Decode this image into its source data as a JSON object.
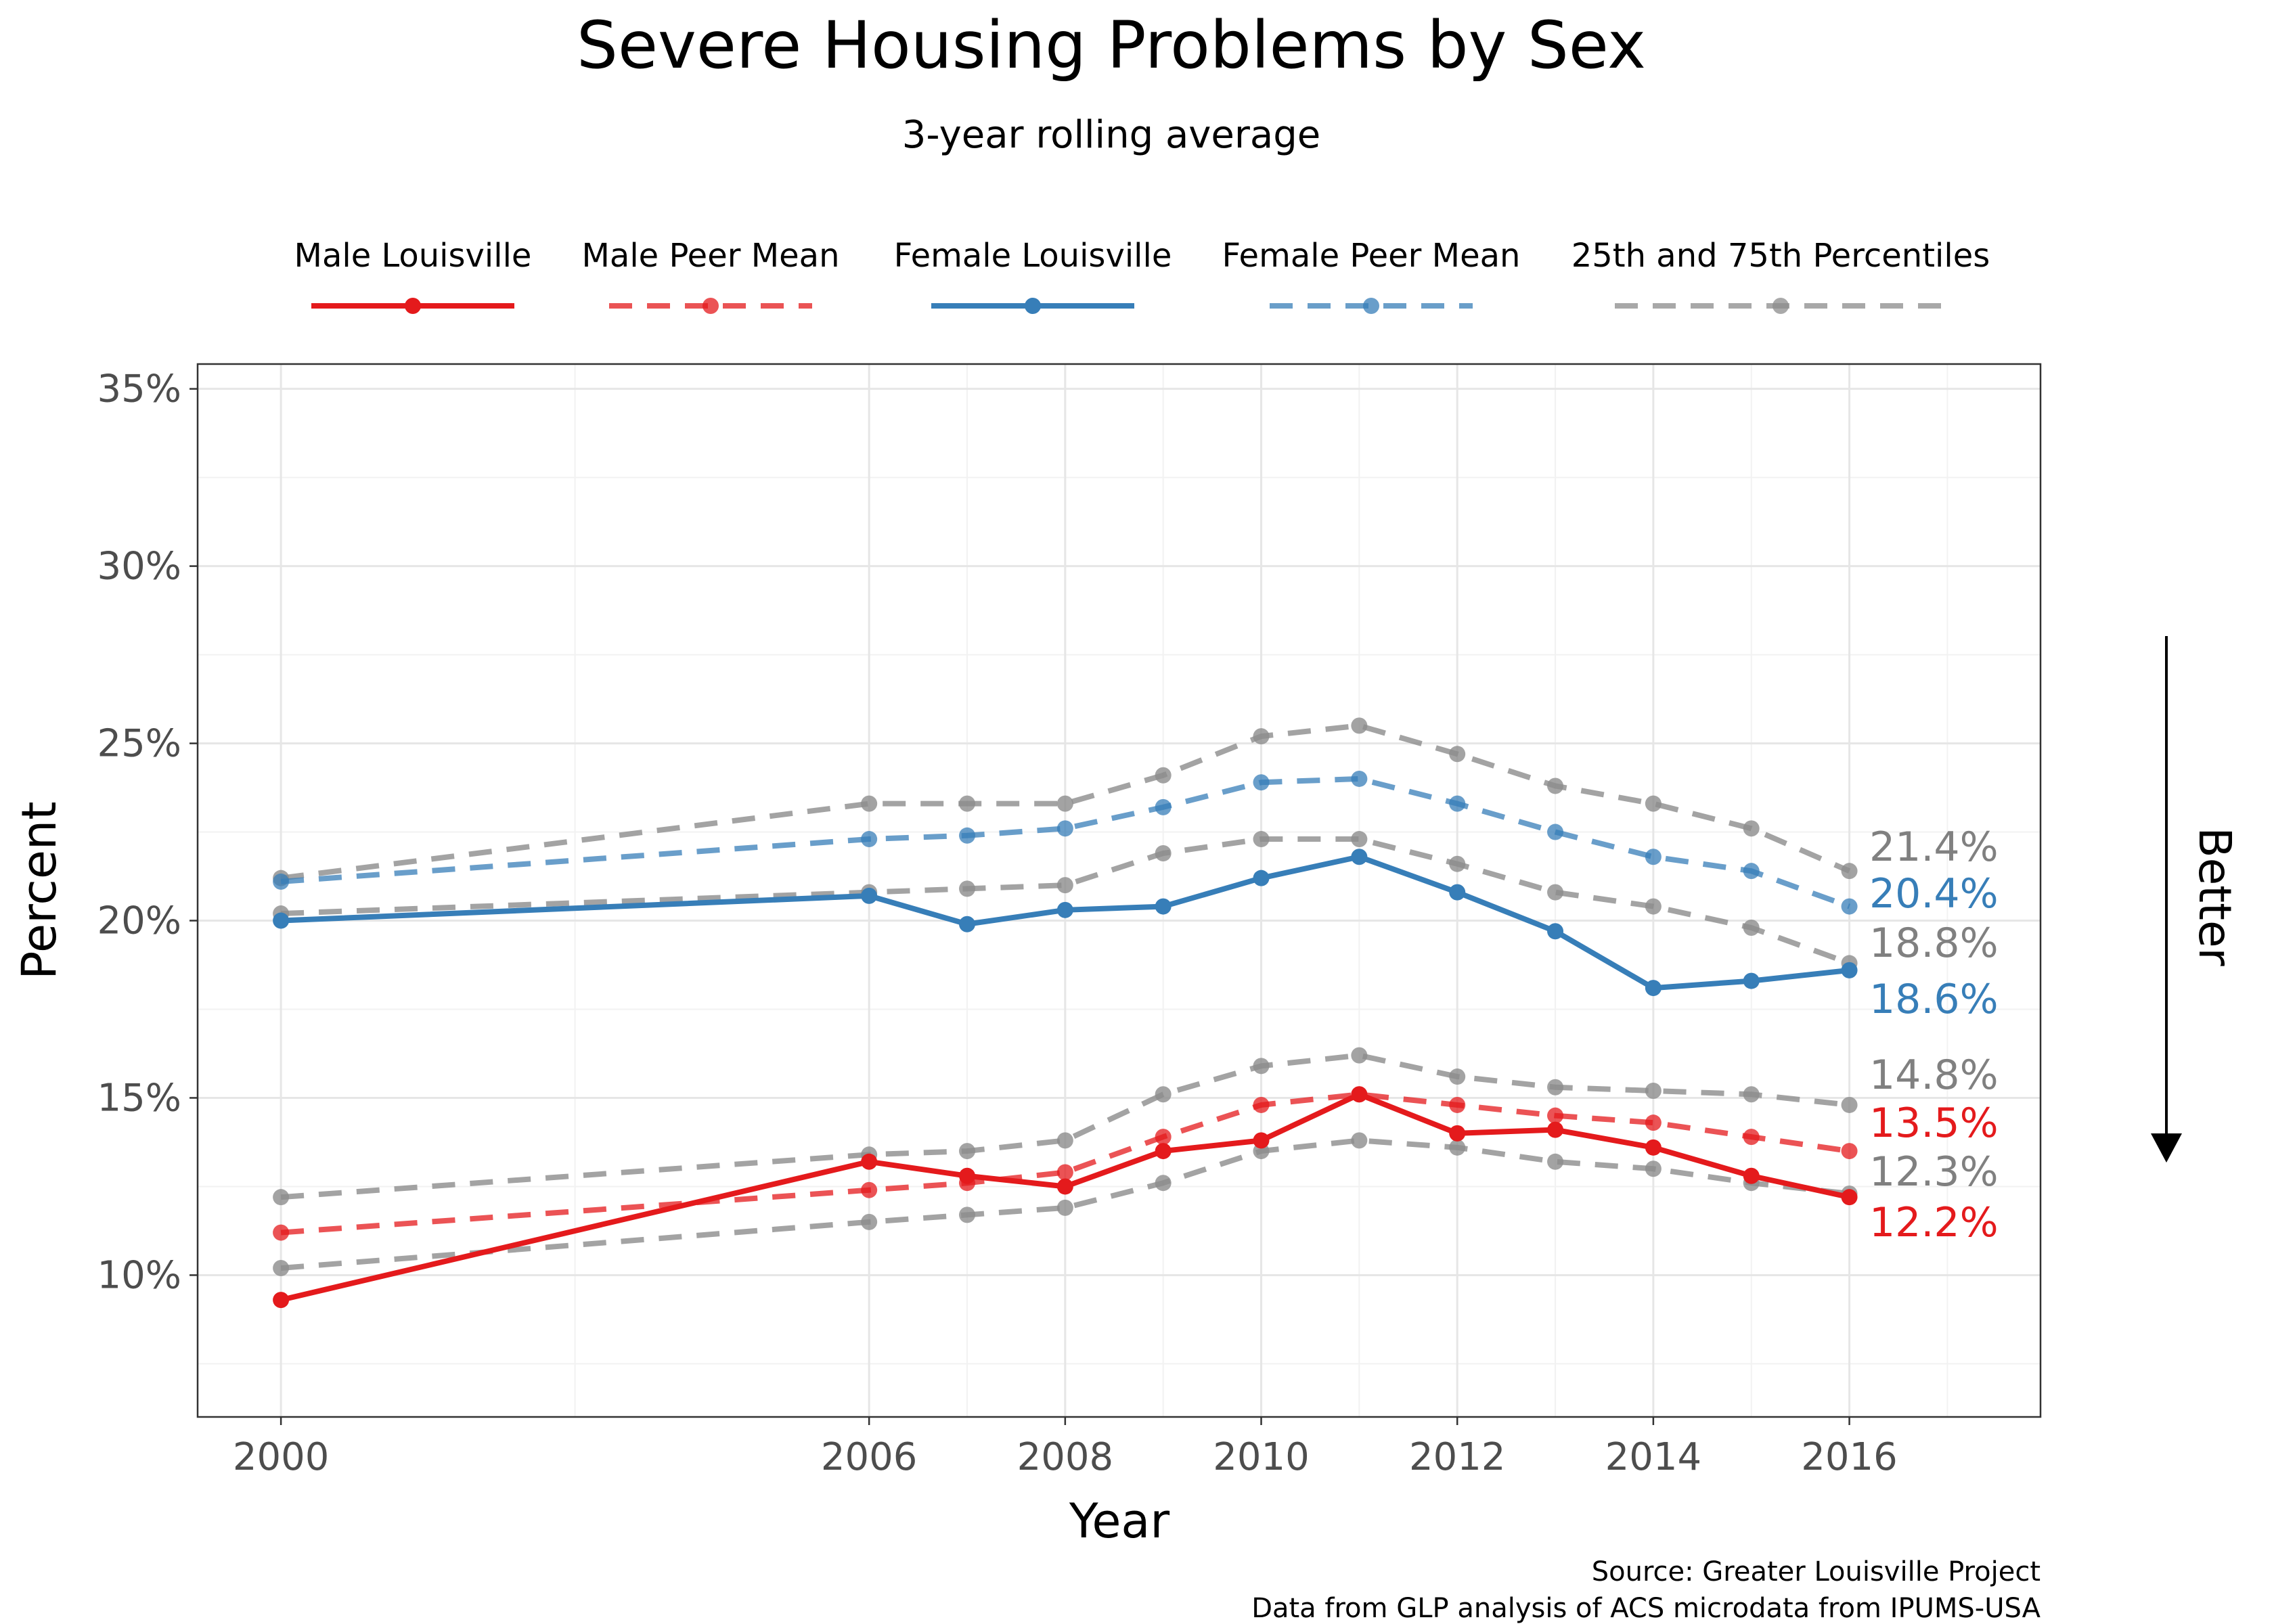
{
  "chart_data": {
    "type": "line",
    "title": "Severe Housing Problems by Sex",
    "subtitle": "3-year rolling average",
    "xlabel": "Year",
    "ylabel": "Percent",
    "side_label": "Better",
    "x_ticks": [
      2000,
      2006,
      2008,
      2010,
      2012,
      2014,
      2016
    ],
    "y_ticks": [
      10,
      15,
      20,
      25,
      30,
      35
    ],
    "y_tick_labels": [
      "10%",
      "15%",
      "20%",
      "25%",
      "30%",
      "35%"
    ],
    "xlim": [
      1999.15,
      2017.95
    ],
    "ylim": [
      6.0,
      35.7
    ],
    "grid": true,
    "legend_position": "top",
    "legend": [
      {
        "label": "Male Louisville",
        "color": "#e41a1c",
        "style": "solid"
      },
      {
        "label": "Male Peer Mean",
        "color": "#e41a1c",
        "style": "dashed"
      },
      {
        "label": "Female Louisville",
        "color": "#377eb8",
        "style": "solid"
      },
      {
        "label": "Female Peer Mean",
        "color": "#377eb8",
        "style": "dashed"
      },
      {
        "label": "25th and 75th Percentiles",
        "color": "#8c8c8c",
        "style": "dashed"
      }
    ],
    "x": [
      2000,
      2006,
      2007,
      2008,
      2009,
      2010,
      2011,
      2012,
      2013,
      2014,
      2015,
      2016
    ],
    "series": [
      {
        "key": "female_p75",
        "color": "#8c8c8c",
        "style": "dashed",
        "opacity": 0.8,
        "values": [
          21.2,
          23.3,
          23.3,
          23.3,
          24.1,
          25.2,
          25.5,
          24.7,
          23.8,
          23.3,
          22.6,
          21.4
        ]
      },
      {
        "key": "female_p25",
        "color": "#8c8c8c",
        "style": "dashed",
        "opacity": 0.8,
        "values": [
          20.2,
          20.8,
          20.9,
          21.0,
          21.9,
          22.3,
          22.3,
          21.6,
          20.8,
          20.4,
          19.8,
          18.8
        ]
      },
      {
        "key": "female_peer_mean",
        "color": "#377eb8",
        "style": "dashed",
        "opacity": 0.75,
        "values": [
          21.1,
          22.3,
          22.4,
          22.6,
          23.2,
          23.9,
          24.0,
          23.3,
          22.5,
          21.8,
          21.4,
          20.4
        ]
      },
      {
        "key": "male_p75",
        "color": "#8c8c8c",
        "style": "dashed",
        "opacity": 0.8,
        "values": [
          12.2,
          13.4,
          13.5,
          13.8,
          15.1,
          15.9,
          16.2,
          15.6,
          15.3,
          15.2,
          15.1,
          14.8
        ]
      },
      {
        "key": "male_p25",
        "color": "#8c8c8c",
        "style": "dashed",
        "opacity": 0.8,
        "values": [
          10.2,
          11.5,
          11.7,
          11.9,
          12.6,
          13.5,
          13.8,
          13.6,
          13.2,
          13.0,
          12.6,
          12.3
        ]
      },
      {
        "key": "male_peer_mean",
        "color": "#e41a1c",
        "style": "dashed",
        "opacity": 0.75,
        "values": [
          11.2,
          12.4,
          12.6,
          12.9,
          13.9,
          14.8,
          15.1,
          14.8,
          14.5,
          14.3,
          13.9,
          13.5
        ]
      },
      {
        "key": "female_louisville",
        "color": "#377eb8",
        "style": "solid",
        "opacity": 1,
        "values": [
          20.0,
          20.7,
          19.9,
          20.3,
          20.4,
          21.2,
          21.8,
          20.8,
          19.7,
          18.1,
          18.3,
          18.6
        ]
      },
      {
        "key": "male_louisville",
        "color": "#e41a1c",
        "style": "solid",
        "opacity": 1,
        "values": [
          9.3,
          13.2,
          12.8,
          12.5,
          13.5,
          13.8,
          15.1,
          14.0,
          14.1,
          13.6,
          12.8,
          12.2
        ]
      }
    ],
    "end_labels": [
      {
        "text": "21.4%",
        "value": 21.4,
        "color": "#808080"
      },
      {
        "text": "20.4%",
        "value": 20.4,
        "color": "#377eb8"
      },
      {
        "text": "18.8%",
        "value": 18.8,
        "color": "#808080"
      },
      {
        "text": "18.6%",
        "value": 18.6,
        "color": "#377eb8"
      },
      {
        "text": "14.8%",
        "value": 14.8,
        "color": "#808080"
      },
      {
        "text": "13.5%",
        "value": 13.5,
        "color": "#e41a1c"
      },
      {
        "text": "12.3%",
        "value": 12.3,
        "color": "#808080"
      },
      {
        "text": "12.2%",
        "value": 12.2,
        "color": "#e41a1c"
      }
    ],
    "caption": [
      "Source: Greater Louisville Project",
      "Data from GLP analysis of ACS microdata from IPUMS-USA"
    ]
  }
}
